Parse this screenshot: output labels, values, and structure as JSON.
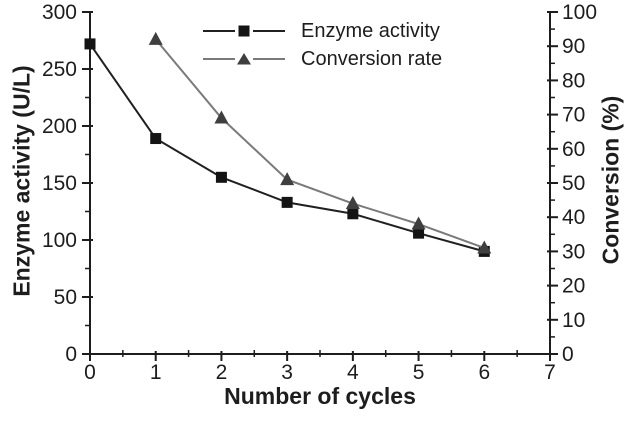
{
  "chart_data": {
    "type": "line",
    "title": "",
    "xlabel": "Number of cycles",
    "xlim": [
      0,
      7
    ],
    "x_major_ticks": [
      0,
      1,
      2,
      3,
      4,
      5,
      6,
      7
    ],
    "x_minor_ticks": [
      0.5,
      1.5,
      2.5,
      3.5,
      4.5,
      5.5,
      6.5
    ],
    "left_axis": {
      "label": "Enzyme activity (U/L)",
      "lim": [
        0,
        300
      ],
      "major_ticks": [
        0,
        50,
        100,
        150,
        200,
        250,
        300
      ],
      "minor_ticks": [
        25,
        75,
        125,
        175,
        225,
        275
      ]
    },
    "right_axis": {
      "label": "Conversion (%)",
      "lim": [
        0,
        100
      ],
      "major_ticks": [
        0,
        10,
        20,
        30,
        40,
        50,
        60,
        70,
        80,
        90,
        100
      ],
      "minor_ticks": [
        5,
        15,
        25,
        35,
        45,
        55,
        65,
        75,
        85,
        95
      ]
    },
    "grid": "off",
    "legend_position": "top-center",
    "colors": {
      "axis": "#1d1d1d",
      "text": "#1d1d1d",
      "background": "#ffffff",
      "enzyme_series": "#141414",
      "conversion_marker": "#3f3f3f",
      "conversion_line": "#7a7a7a"
    },
    "series": [
      {
        "name": "Enzyme activity",
        "axis": "left",
        "marker": "square",
        "color": "#141414",
        "line_color": "#202020",
        "x": [
          0,
          1,
          2,
          3,
          4,
          5,
          6
        ],
        "values": [
          272,
          189,
          155,
          133,
          123,
          106,
          90
        ]
      },
      {
        "name": "Conversion rate",
        "axis": "right",
        "marker": "triangle",
        "color": "#3f3f3f",
        "line_color": "#7a7a7a",
        "x": [
          1,
          2,
          3,
          4,
          5,
          6
        ],
        "values": [
          92,
          69,
          51,
          44,
          38,
          31
        ]
      }
    ]
  }
}
